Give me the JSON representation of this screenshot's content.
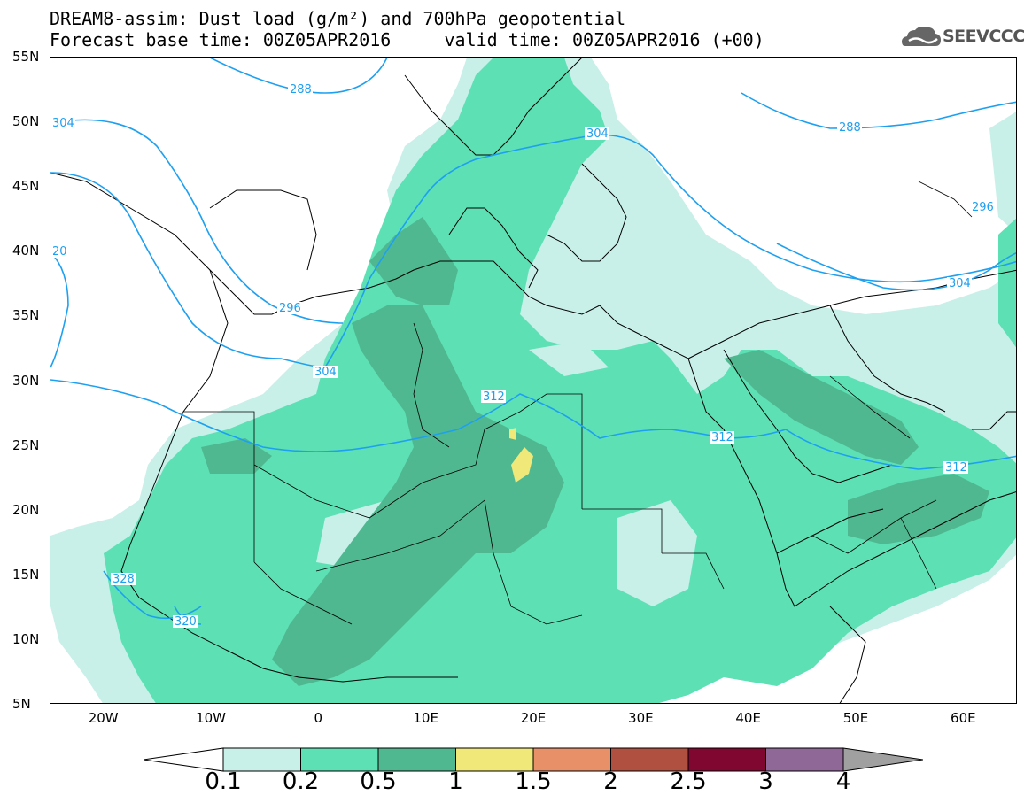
{
  "header": {
    "title_line1": "DREAM8-assim: Dust load (g/m²) and 700hPa geopotential",
    "title_line2": "Forecast base time: 00Z05APR2016     valid time: 00Z05APR2016 (+00)"
  },
  "logo": {
    "text": "SEEVCCC",
    "icon": "cloud-logo-icon"
  },
  "map": {
    "lat_ticks": [
      "55N",
      "50N",
      "45N",
      "40N",
      "35N",
      "30N",
      "25N",
      "20N",
      "15N",
      "10N",
      "5N"
    ],
    "lon_ticks": [
      "20W",
      "10W",
      "0",
      "10E",
      "20E",
      "30E",
      "40E",
      "50E",
      "60E"
    ],
    "contour_labels": [
      "288",
      "304",
      "288",
      "304",
      "296",
      "20",
      "296",
      "304",
      "312",
      "312",
      "312",
      "328",
      "320",
      "304"
    ]
  },
  "colorbar": {
    "labels": [
      "0.1",
      "0.2",
      "0.5",
      "1",
      "1.5",
      "2",
      "2.5",
      "3",
      "4"
    ],
    "colors": [
      "#ffffff",
      "#c8f0e8",
      "#5ce0b4",
      "#50b890",
      "#f0e878",
      "#e89068",
      "#b05040",
      "#800830",
      "#906898",
      "#a0a0a0"
    ]
  },
  "colors": {
    "dust_light": "#c8f0e8",
    "dust_medium": "#5ce0b4",
    "dust_dark": "#50b890",
    "dust_yellow": "#f0e878",
    "contour": "#1ea0f0"
  }
}
